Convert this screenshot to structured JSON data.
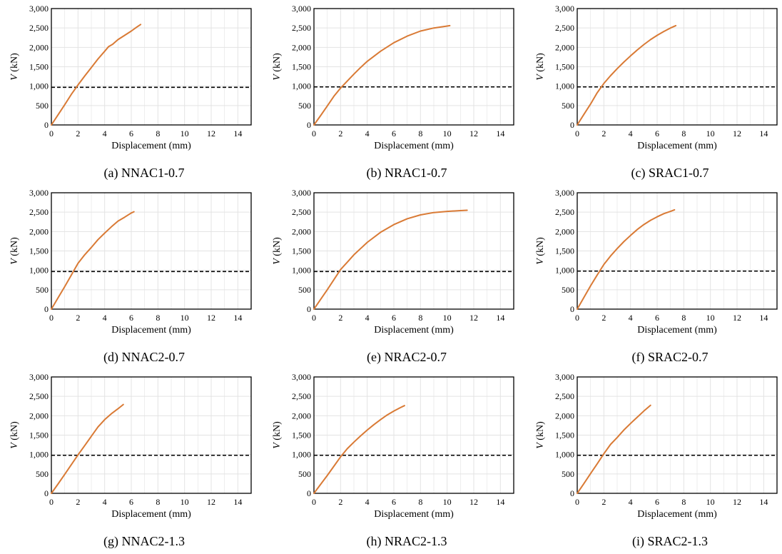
{
  "figure": {
    "colors": {
      "curve": "#D97A35",
      "threshold": "#000000",
      "frame": "#000000",
      "grid": "#E3E3E3"
    },
    "chart_data": [
      {
        "type": "line",
        "caption": "(a) NNAC1-0.7",
        "xlabel": "Displacement (mm)",
        "ylabel": "V (kN)",
        "xlim": [
          0,
          15
        ],
        "ylim": [
          0,
          3000
        ],
        "xticks": [
          0,
          2,
          4,
          6,
          8,
          10,
          12,
          14
        ],
        "yticks": [
          0,
          500,
          1000,
          1500,
          2000,
          2500,
          3000
        ],
        "xtick_labels": [
          "0",
          "2",
          "4",
          "6",
          "8",
          "10",
          "12",
          "14"
        ],
        "ytick_labels": [
          "0",
          "500",
          "1,000",
          "1,500",
          "2,000",
          "2,500",
          "3,000"
        ],
        "grid": true,
        "threshold": {
          "name": "dashed reference line",
          "y": 970
        },
        "series": [
          {
            "name": "V-displacement curve",
            "x": [
              0,
              0.5,
              1,
              1.5,
              2,
              2.5,
              3,
              3.5,
              4,
              4.3,
              4.6,
              5,
              5.5,
              6,
              6.4,
              6.7
            ],
            "y": [
              0,
              260,
              520,
              790,
              1030,
              1260,
              1480,
              1700,
              1900,
              2020,
              2080,
              2200,
              2310,
              2420,
              2520,
              2590
            ]
          }
        ]
      },
      {
        "type": "line",
        "caption": "(b) NRAC1-0.7",
        "xlabel": "Displacement (mm)",
        "ylabel": "V (kN)",
        "xlim": [
          0,
          15
        ],
        "ylim": [
          0,
          3000
        ],
        "xticks": [
          0,
          2,
          4,
          6,
          8,
          10,
          12,
          14
        ],
        "yticks": [
          0,
          500,
          1000,
          1500,
          2000,
          2500,
          3000
        ],
        "xtick_labels": [
          "0",
          "2",
          "4",
          "6",
          "8",
          "10",
          "12",
          "14"
        ],
        "ytick_labels": [
          "0",
          "500",
          "1,000",
          "1,500",
          "2,000",
          "2,500",
          "3,000"
        ],
        "grid": true,
        "threshold": {
          "name": "dashed reference line",
          "y": 980
        },
        "series": [
          {
            "name": "V-displacement curve",
            "x": [
              0,
              0.5,
              1,
              1.5,
              2,
              2.5,
              3,
              3.5,
              4,
              5,
              6,
              7,
              8,
              9,
              10,
              10.2
            ],
            "y": [
              0,
              240,
              490,
              740,
              950,
              1130,
              1310,
              1480,
              1640,
              1900,
              2120,
              2290,
              2420,
              2500,
              2550,
              2560
            ]
          }
        ]
      },
      {
        "type": "line",
        "caption": "(c) SRAC1-0.7",
        "xlabel": "Displacement (mm)",
        "ylabel": "V (kN)",
        "xlim": [
          0,
          15
        ],
        "ylim": [
          0,
          3000
        ],
        "xticks": [
          0,
          2,
          4,
          6,
          8,
          10,
          12,
          14
        ],
        "yticks": [
          0,
          500,
          1000,
          1500,
          2000,
          2500,
          3000
        ],
        "xtick_labels": [
          "0",
          "2",
          "4",
          "6",
          "8",
          "10",
          "12",
          "14"
        ],
        "ytick_labels": [
          "0",
          "500",
          "1,000",
          "1,500",
          "2,000",
          "2,500",
          "3,000"
        ],
        "grid": true,
        "threshold": {
          "name": "dashed reference line",
          "y": 980
        },
        "series": [
          {
            "name": "V-displacement curve",
            "x": [
              0,
              0.5,
              1,
              1.5,
              2,
              2.5,
              3,
              3.5,
              4,
              4.5,
              5,
              5.5,
              6,
              6.5,
              7,
              7.4
            ],
            "y": [
              0,
              270,
              540,
              830,
              1070,
              1270,
              1450,
              1620,
              1780,
              1930,
              2070,
              2200,
              2310,
              2410,
              2500,
              2560
            ]
          }
        ]
      },
      {
        "type": "line",
        "caption": "(d) NNAC2-0.7",
        "xlabel": "Displacement (mm)",
        "ylabel": "V (kN)",
        "xlim": [
          0,
          15
        ],
        "ylim": [
          0,
          3000
        ],
        "xticks": [
          0,
          2,
          4,
          6,
          8,
          10,
          12,
          14
        ],
        "yticks": [
          0,
          500,
          1000,
          1500,
          2000,
          2500,
          3000
        ],
        "xtick_labels": [
          "0",
          "2",
          "4",
          "6",
          "8",
          "10",
          "12",
          "14"
        ],
        "ytick_labels": [
          "0",
          "500",
          "1,000",
          "1,500",
          "2,000",
          "2,500",
          "3,000"
        ],
        "grid": true,
        "threshold": {
          "name": "dashed reference line",
          "y": 970
        },
        "series": [
          {
            "name": "V-displacement curve",
            "x": [
              0,
              0.5,
              1,
              1.5,
              2,
              2.5,
              3,
              3.5,
              4,
              4.5,
              5,
              5.5,
              6,
              6.2
            ],
            "y": [
              0,
              290,
              580,
              880,
              1180,
              1400,
              1590,
              1790,
              1960,
              2120,
              2270,
              2370,
              2480,
              2510
            ]
          }
        ]
      },
      {
        "type": "line",
        "caption": "(e) NRAC2-0.7",
        "xlabel": "Displacement (mm)",
        "ylabel": "V (kN)",
        "xlim": [
          0,
          15
        ],
        "ylim": [
          0,
          3000
        ],
        "xticks": [
          0,
          2,
          4,
          6,
          8,
          10,
          12,
          14
        ],
        "yticks": [
          0,
          500,
          1000,
          1500,
          2000,
          2500,
          3000
        ],
        "xtick_labels": [
          "0",
          "2",
          "4",
          "6",
          "8",
          "10",
          "12",
          "14"
        ],
        "ytick_labels": [
          "0",
          "500",
          "1,000",
          "1,500",
          "2,000",
          "2,500",
          "3,000"
        ],
        "grid": true,
        "threshold": {
          "name": "dashed reference line",
          "y": 970
        },
        "series": [
          {
            "name": "V-displacement curve",
            "x": [
              0,
              0.5,
              1,
              1.5,
              2,
              2.5,
              3,
              4,
              5,
              6,
              7,
              8,
              9,
              10,
              11,
              11.5
            ],
            "y": [
              0,
              250,
              500,
              760,
              1020,
              1210,
              1400,
              1720,
              1980,
              2180,
              2330,
              2430,
              2490,
              2520,
              2540,
              2550
            ]
          }
        ]
      },
      {
        "type": "line",
        "caption": "(f) SRAC2-0.7",
        "xlabel": "Displacement (mm)",
        "ylabel": "V (kN)",
        "xlim": [
          0,
          15
        ],
        "ylim": [
          0,
          3000
        ],
        "xticks": [
          0,
          2,
          4,
          6,
          8,
          10,
          12,
          14
        ],
        "yticks": [
          0,
          500,
          1000,
          1500,
          2000,
          2500,
          3000
        ],
        "xtick_labels": [
          "0",
          "2",
          "4",
          "6",
          "8",
          "10",
          "12",
          "14"
        ],
        "ytick_labels": [
          "0",
          "500",
          "1,000",
          "1,500",
          "2,000",
          "2,500",
          "3,000"
        ],
        "grid": true,
        "threshold": {
          "name": "dashed reference line",
          "y": 980
        },
        "series": [
          {
            "name": "V-displacement curve",
            "x": [
              0,
              0.5,
              1,
              1.5,
              2,
              2.5,
              3,
              3.5,
              4,
              4.5,
              5,
              5.5,
              6,
              6.5,
              7,
              7.3
            ],
            "y": [
              0,
              300,
              600,
              880,
              1150,
              1370,
              1560,
              1740,
              1900,
              2050,
              2180,
              2290,
              2380,
              2460,
              2520,
              2560
            ]
          }
        ]
      },
      {
        "type": "line",
        "caption": "(g) NNAC2-1.3",
        "xlabel": "Displacement (mm)",
        "ylabel": "V (kN)",
        "xlim": [
          0,
          15
        ],
        "ylim": [
          0,
          3000
        ],
        "xticks": [
          0,
          2,
          4,
          6,
          8,
          10,
          12,
          14
        ],
        "yticks": [
          0,
          500,
          1000,
          1500,
          2000,
          2500,
          3000
        ],
        "xtick_labels": [
          "0",
          "2",
          "4",
          "6",
          "8",
          "10",
          "12",
          "14"
        ],
        "ytick_labels": [
          "0",
          "500",
          "1,000",
          "1,500",
          "2,000",
          "2,500",
          "3,000"
        ],
        "grid": true,
        "threshold": {
          "name": "dashed reference line",
          "y": 980
        },
        "series": [
          {
            "name": "V-displacement curve",
            "x": [
              0,
              0.5,
              1,
              1.5,
              2,
              2.5,
              3,
              3.5,
              4,
              4.5,
              5,
              5.4
            ],
            "y": [
              0,
              240,
              490,
              740,
              990,
              1230,
              1470,
              1710,
              1900,
              2050,
              2180,
              2290
            ]
          }
        ]
      },
      {
        "type": "line",
        "caption": "(h) NRAC2-1.3",
        "xlabel": "Displacement (mm)",
        "ylabel": "V (kN)",
        "xlim": [
          0,
          15
        ],
        "ylim": [
          0,
          3000
        ],
        "xticks": [
          0,
          2,
          4,
          6,
          8,
          10,
          12,
          14
        ],
        "yticks": [
          0,
          500,
          1000,
          1500,
          2000,
          2500,
          3000
        ],
        "xtick_labels": [
          "0",
          "2",
          "4",
          "6",
          "8",
          "10",
          "12",
          "14"
        ],
        "ytick_labels": [
          "0",
          "500",
          "1,000",
          "1,500",
          "2,000",
          "2,500",
          "3,000"
        ],
        "grid": true,
        "threshold": {
          "name": "dashed reference line",
          "y": 980
        },
        "series": [
          {
            "name": "V-displacement curve",
            "x": [
              0,
              0.5,
              1,
              1.5,
              2,
              2.5,
              3,
              3.5,
              4,
              4.5,
              5,
              5.5,
              6,
              6.5,
              6.8
            ],
            "y": [
              0,
              230,
              460,
              700,
              940,
              1150,
              1320,
              1480,
              1630,
              1770,
              1900,
              2020,
              2120,
              2210,
              2260
            ]
          }
        ]
      },
      {
        "type": "line",
        "caption": "(i) SRAC2-1.3",
        "xlabel": "Displacement (mm)",
        "ylabel": "V (kN)",
        "xlim": [
          0,
          15
        ],
        "ylim": [
          0,
          3000
        ],
        "xticks": [
          0,
          2,
          4,
          6,
          8,
          10,
          12,
          14
        ],
        "yticks": [
          0,
          500,
          1000,
          1500,
          2000,
          2500,
          3000
        ],
        "xtick_labels": [
          "0",
          "2",
          "4",
          "6",
          "8",
          "10",
          "12",
          "14"
        ],
        "ytick_labels": [
          "0",
          "500",
          "1,000",
          "1,500",
          "2,000",
          "2,500",
          "3,000"
        ],
        "grid": true,
        "threshold": {
          "name": "dashed reference line",
          "y": 980
        },
        "series": [
          {
            "name": "V-displacement curve",
            "x": [
              0,
              0.5,
              1,
              1.5,
              2,
              2.5,
              3,
              3.5,
              4,
              4.5,
              5,
              5.5
            ],
            "y": [
              0,
              250,
              510,
              760,
              1020,
              1260,
              1440,
              1630,
              1800,
              1960,
              2120,
              2270
            ]
          }
        ]
      }
    ]
  }
}
